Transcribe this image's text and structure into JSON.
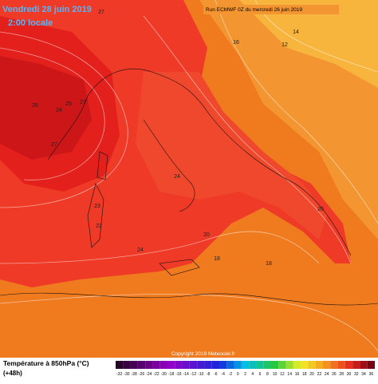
{
  "header": {
    "date": "Vendredi 28 juin 2019",
    "time": "2:00 locale",
    "run": "Run ECMWF 0Z du mercredi 26 juin 2019"
  },
  "contour_labels": [
    "27",
    "26",
    "24",
    "25",
    "27",
    "27",
    "24",
    "23",
    "22",
    "24",
    "20",
    "20",
    "18",
    "18",
    "16",
    "14",
    "12"
  ],
  "footer": {
    "copyright": "Copyright 2019 Meteociel.fr",
    "variable": "Température à 850hPa (°C)",
    "lead": "(+48h)"
  },
  "colorbar": {
    "ticks": [
      -32,
      -30,
      -28,
      -26,
      -24,
      -22,
      -20,
      -18,
      -16,
      -14,
      -12,
      -10,
      -8,
      -6,
      -4,
      -2,
      0,
      2,
      4,
      6,
      8,
      10,
      12,
      14,
      16,
      18,
      20,
      22,
      24,
      26,
      28,
      30,
      32,
      34,
      36
    ]
  }
}
